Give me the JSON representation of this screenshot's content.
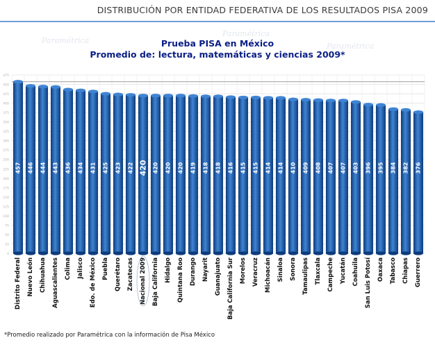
{
  "header": {
    "text": "DISTRIBUCIÓN POR ENTIDAD FEDERATIVA DE LOS RESULTADOS PISA 2009"
  },
  "watermark_text": "Paramétrica",
  "chart_data": {
    "type": "bar",
    "title": "Prueba PISA en México",
    "subtitle": "Promedio de: lectura, matemáticas y ciencias 2009*",
    "xlabel": "",
    "ylabel": "",
    "ylim": [
      0,
      475
    ],
    "y_ticks": [
      0,
      25,
      50,
      75,
      100,
      125,
      150,
      175,
      200,
      225,
      250,
      275,
      300,
      325,
      350,
      375,
      400,
      425,
      450,
      475
    ],
    "grid": true,
    "legend": "none",
    "highlight_category": "Nacional 2009",
    "reference_line": 457,
    "categories": [
      "Distrito Federal",
      "Nuevo León",
      "Chihuahua",
      "Aguascalientes",
      "Colima",
      "Jalisco",
      "Edo. de México",
      "Puebla",
      "Querétaro",
      "Zacatecas",
      "Nacional 2009",
      "Baja California",
      "Hidalgo",
      "Quintana Roo",
      "Durango",
      "Nayarit",
      "Guanajuato",
      "Baja California Sur",
      "Morelos",
      "Veracruz",
      "Michoacán",
      "Sinaloa",
      "Sonora",
      "Tamaulipas",
      "Tlaxcala",
      "Campeche",
      "Yucatán",
      "Coahuila",
      "San Luis Potosí",
      "Oaxaca",
      "Tabasco",
      "Chiapas",
      "Guerrero"
    ],
    "values": [
      457,
      446,
      444,
      443,
      436,
      434,
      431,
      425,
      423,
      422,
      420,
      420,
      420,
      420,
      419,
      418,
      418,
      416,
      415,
      415,
      414,
      414,
      410,
      409,
      408,
      407,
      407,
      403,
      396,
      395,
      384,
      382,
      376
    ],
    "colors": {
      "bar": "#1e5db0",
      "bar_dark": "#0d3b7c",
      "bar_light": "#3f84d3",
      "label": "#ffffff",
      "title": "#0b1f86",
      "grid": "#d7d7d7",
      "reference_line": "#9a9a9a"
    }
  },
  "footnote": "*Promedio realizado por Paramétrica con la información de Pisa México"
}
